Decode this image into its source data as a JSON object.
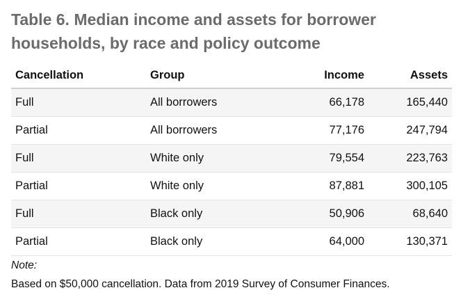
{
  "title": "Table 6. Median income and assets for borrower households, by race and policy outcome",
  "table": {
    "headers": [
      "Cancellation",
      "Group",
      "Income",
      "Assets"
    ],
    "rows": [
      [
        "Full",
        "All borrowers",
        "66,178",
        "165,440"
      ],
      [
        "Partial",
        "All borrowers",
        "77,176",
        "247,794"
      ],
      [
        "Full",
        "White only",
        "79,554",
        "223,763"
      ],
      [
        "Partial",
        "White only",
        "87,881",
        "300,105"
      ],
      [
        "Full",
        "Black only",
        "50,906",
        "68,640"
      ],
      [
        "Partial",
        "Black only",
        "64,000",
        "130,371"
      ]
    ]
  },
  "note": {
    "label": "Note:",
    "text": "Based on $50,000 cancellation. Data from 2019 Survey of Consumer Finances."
  }
}
